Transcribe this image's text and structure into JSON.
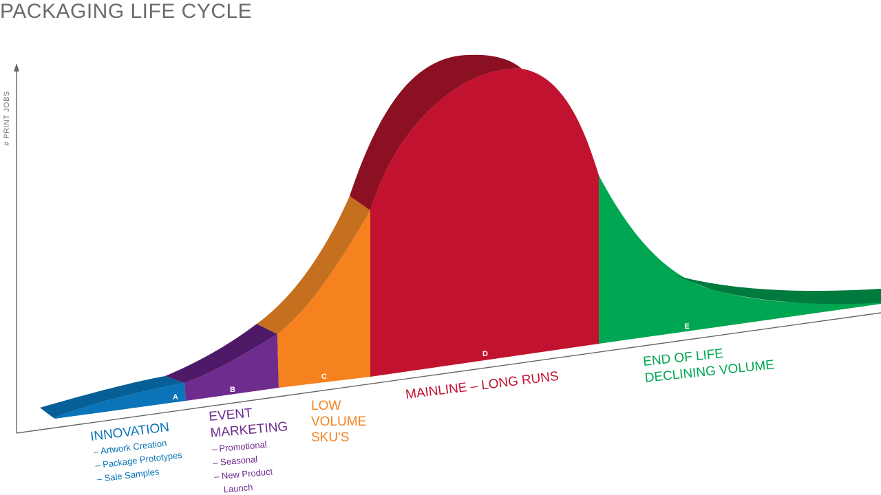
{
  "title": "PACKAGING LIFE CYCLE",
  "y_axis_label": "# PRINT JOBS",
  "colors": {
    "innovation": "#0b74b8",
    "event_marketing": "#6e2c8e",
    "low_volume": "#f5821f",
    "mainline": "#c1132f",
    "end_of_life": "#00a651",
    "axis": "#666666"
  },
  "segments": [
    {
      "key": "A",
      "letter": "A"
    },
    {
      "key": "B",
      "letter": "B"
    },
    {
      "key": "C",
      "letter": "C"
    },
    {
      "key": "D",
      "letter": "D"
    },
    {
      "key": "E",
      "letter": "E"
    }
  ],
  "labels": {
    "innovation": {
      "title": "INNOVATION",
      "items": [
        "– Artwork Creation",
        "– Package Prototypes",
        "– Sale Samples"
      ]
    },
    "event_marketing": {
      "title_lines": [
        "EVENT",
        "MARKETING"
      ],
      "items": [
        "– Promotional",
        "– Seasonal",
        "– New Product",
        "Launch"
      ]
    },
    "low_volume": {
      "title_lines": [
        "LOW",
        "VOLUME",
        "SKU'S"
      ]
    },
    "mainline": {
      "title": "MAINLINE – LONG RUNS"
    },
    "end_of_life": {
      "title_lines": [
        "END OF LIFE",
        "DECLINING VOLUME"
      ]
    }
  }
}
